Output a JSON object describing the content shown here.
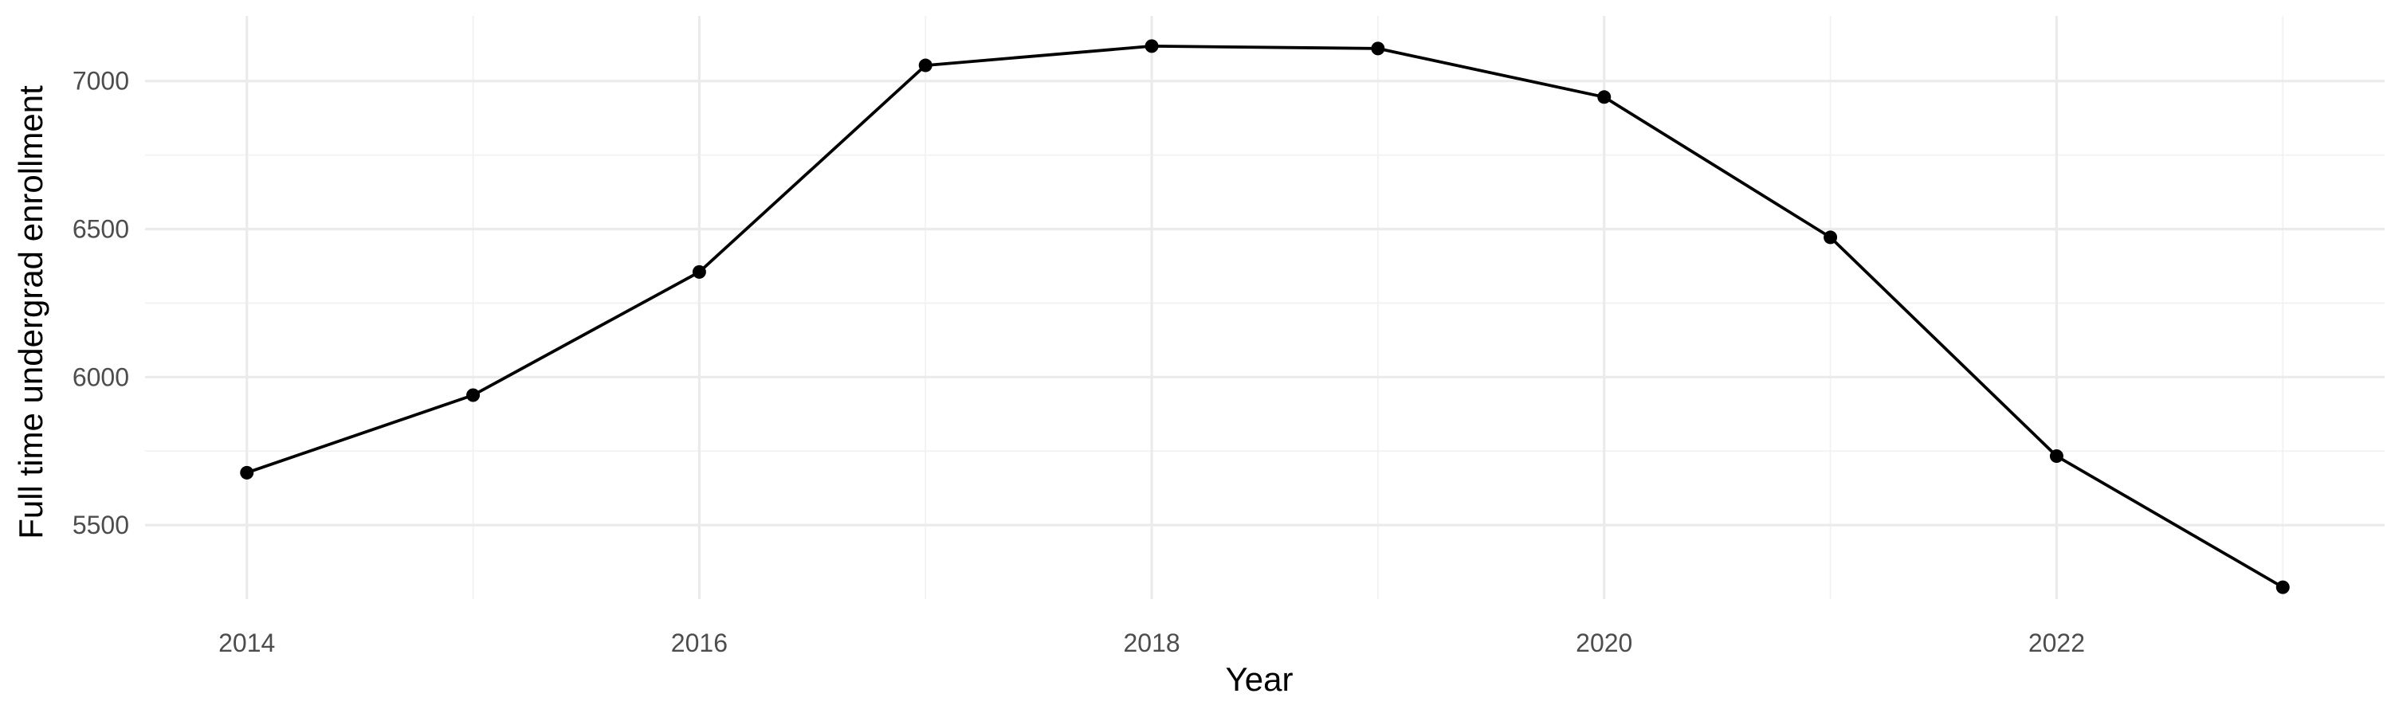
{
  "chart_data": {
    "type": "line",
    "title": "",
    "xlabel": "Year",
    "ylabel": "Full time undergrad enrollment",
    "x": [
      2014,
      2015,
      2016,
      2017,
      2018,
      2019,
      2020,
      2021,
      2022,
      2023
    ],
    "series": [
      {
        "values": [
          5677,
          5939,
          6355,
          7053,
          7118,
          7110,
          6946,
          6472,
          5733,
          5290
        ]
      }
    ],
    "xlim": [
      2013.55,
      2023.45
    ],
    "ylim": [
      5250,
      7220
    ],
    "x_ticks": [
      2014,
      2016,
      2018,
      2020,
      2022
    ],
    "y_ticks": [
      5500,
      6000,
      6500,
      7000
    ],
    "x_tick_labels": [
      "2014",
      "2016",
      "2018",
      "2020",
      "2022"
    ],
    "y_tick_labels": [
      "5500",
      "6000",
      "6500",
      "7000"
    ],
    "grid": true,
    "legend": "none",
    "colors": {
      "line": "#000000",
      "points": "#000000",
      "grid_major": "#ebebeb",
      "grid_minor": "#f2f2f2",
      "tick_text": "#4d4d4d"
    }
  }
}
